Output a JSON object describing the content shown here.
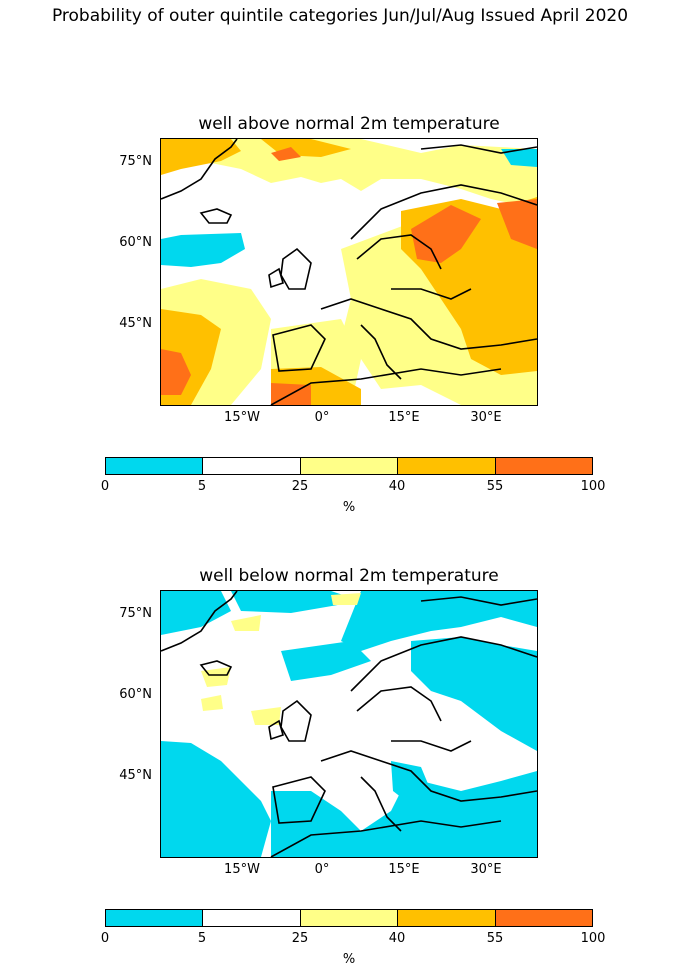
{
  "suptitle": "Probability of outer quintile categories Jun/Jul/Aug Issued April 2020",
  "panels": [
    {
      "title": "well above normal 2m temperature",
      "lat_labels": [
        "75°N",
        "60°N",
        "45°N"
      ],
      "lon_labels": [
        "15°W",
        "0°",
        "15°E",
        "30°E"
      ],
      "colorbar": {
        "ticks": [
          "0",
          "5",
          "25",
          "40",
          "55",
          "100"
        ],
        "unit": "%",
        "colors": [
          "#00d8ee",
          "#ffffff",
          "#ffff88",
          "#ffc000",
          "#ff7018"
        ]
      }
    },
    {
      "title": "well below normal 2m temperature",
      "lat_labels": [
        "75°N",
        "60°N",
        "45°N"
      ],
      "lon_labels": [
        "15°W",
        "0°",
        "15°E",
        "30°E"
      ],
      "colorbar": {
        "ticks": [
          "0",
          "5",
          "25",
          "40",
          "55",
          "100"
        ],
        "unit": "%",
        "colors": [
          "#00d8ee",
          "#ffffff",
          "#ffff88",
          "#ffc000",
          "#ff7018"
        ]
      }
    }
  ]
}
